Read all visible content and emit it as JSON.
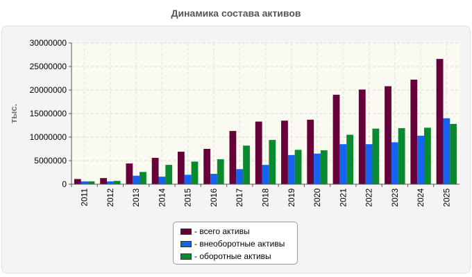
{
  "chart_data": {
    "type": "bar",
    "title": "Динамика состава активов",
    "ylabel": "тыс.",
    "ylim": [
      0,
      30000000
    ],
    "yticks": [
      "0",
      "5000000",
      "10000000",
      "15000000",
      "20000000",
      "25000000",
      "30000000"
    ],
    "categories": [
      "2011",
      "2012",
      "2013",
      "2014",
      "2015",
      "2016",
      "2017",
      "2018",
      "2019",
      "2020",
      "2021",
      "2022",
      "2023",
      "2024",
      "2025"
    ],
    "series": [
      {
        "name": "- всего активы",
        "color": "#66003a",
        "values": [
          1100000,
          1300000,
          4400000,
          5600000,
          6900000,
          7500000,
          11300000,
          13300000,
          13500000,
          13700000,
          19000000,
          20100000,
          20800000,
          22200000,
          26600000
        ]
      },
      {
        "name": "- внеоборотные активы",
        "color": "#1464f0",
        "values": [
          600000,
          600000,
          1800000,
          1600000,
          2000000,
          2200000,
          3200000,
          4100000,
          6200000,
          6500000,
          8500000,
          8500000,
          8900000,
          10300000,
          14000000
        ]
      },
      {
        "name": "- оборотные активы",
        "color": "#0a8a2e",
        "values": [
          600000,
          700000,
          2600000,
          4100000,
          4800000,
          5300000,
          8200000,
          9400000,
          7300000,
          7200000,
          10500000,
          11800000,
          11900000,
          12000000,
          12800000
        ]
      }
    ],
    "grid": true,
    "legend_position": "bottom"
  }
}
